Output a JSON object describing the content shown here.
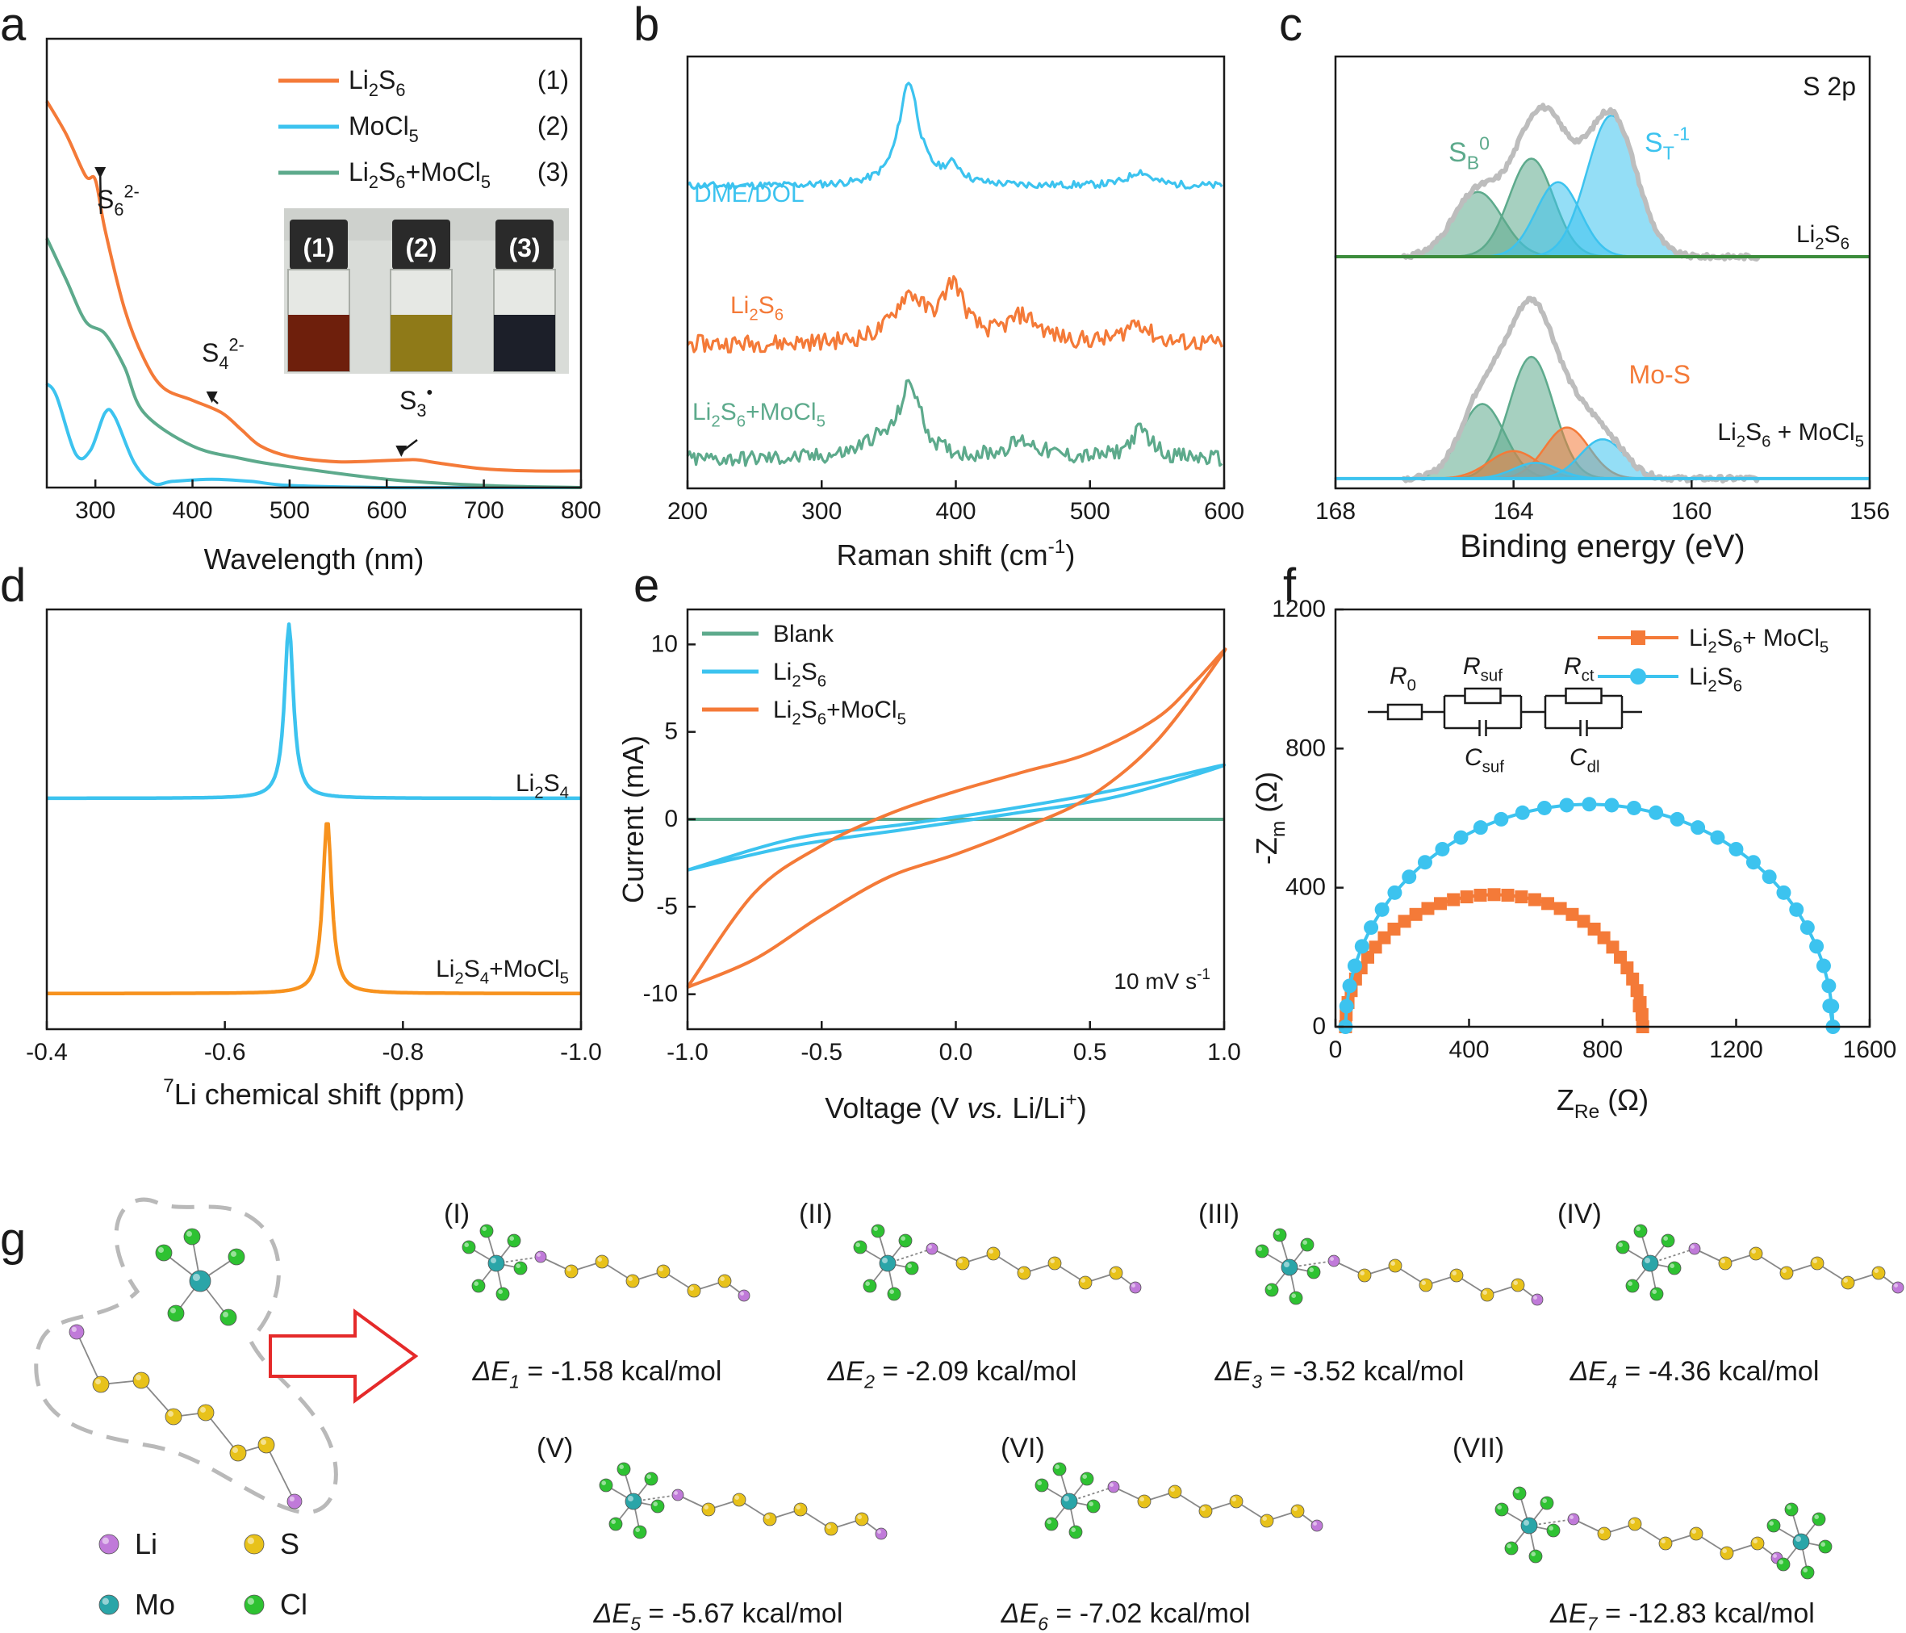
{
  "panels": {
    "a": {
      "letter": "a",
      "chart_data": {
        "type": "line",
        "xlabel": "Wavelength (nm)",
        "ylabel": "",
        "xlim": [
          250,
          800
        ],
        "ylim": [
          0,
          1
        ],
        "xticks": [
          300,
          400,
          500,
          600,
          700,
          800
        ],
        "series": [
          {
            "name": "Li2S6",
            "num": "(1)",
            "color": "#f47a38",
            "x": [
              250,
              270,
              290,
              300,
              310,
              330,
              350,
              370,
              400,
              430,
              450,
              470,
              500,
              550,
              600,
              630,
              650,
              700,
              750,
              800
            ],
            "y": [
              0.93,
              0.85,
              0.75,
              0.74,
              0.62,
              0.43,
              0.31,
              0.24,
              0.21,
              0.18,
              0.14,
              0.1,
              0.075,
              0.062,
              0.065,
              0.067,
              0.06,
              0.045,
              0.04,
              0.04
            ]
          },
          {
            "name": "MoCl5",
            "num": "(2)",
            "color": "#3cc3ef",
            "x": [
              250,
              260,
              280,
              295,
              310,
              320,
              340,
              360,
              380,
              420,
              460,
              500,
              600,
              700,
              800
            ],
            "y": [
              0.25,
              0.22,
              0.08,
              0.09,
              0.18,
              0.17,
              0.06,
              0.01,
              0.015,
              0.02,
              0.015,
              0.005,
              0.0,
              0.0,
              0.0
            ]
          },
          {
            "name": "Li2S6+MoCl5",
            "num": "(3)",
            "color": "#5daa8c",
            "x": [
              250,
              270,
              290,
              310,
              330,
              350,
              400,
              450,
              500,
              600,
              700,
              800
            ],
            "y": [
              0.6,
              0.5,
              0.4,
              0.37,
              0.29,
              0.18,
              0.1,
              0.07,
              0.05,
              0.02,
              0.005,
              0.0
            ]
          }
        ],
        "annotations": [
          {
            "base": "S",
            "sub": "6",
            "sup": "2-",
            "at_x": 305,
            "at_y": 0.74
          },
          {
            "base": "S",
            "sub": "4",
            "sup": "2-",
            "at_x": 420,
            "at_y": 0.2
          },
          {
            "base": "S",
            "sub": "3",
            "sup": "•",
            "at_x": 615,
            "at_y": 0.07
          }
        ],
        "inset": {
          "vials": [
            "(1)",
            "(2)",
            "(3)"
          ],
          "colors": [
            "#6e1f0c",
            "#8f7a18",
            "#1c1f29"
          ]
        }
      }
    },
    "b": {
      "letter": "b",
      "chart_data": {
        "type": "line",
        "xlabel": "Raman shift (cm-1)",
        "ylabel": "",
        "xlim": [
          200,
          600
        ],
        "ylim": [
          0,
          3
        ],
        "xticks": [
          200,
          300,
          400,
          500,
          600
        ],
        "series": [
          {
            "name": "DME/DOL",
            "color": "#3cc3ef",
            "offset": 2.1,
            "peaks": [
              {
                "c": 365,
                "h": 0.72,
                "w": 9
              },
              {
                "c": 398,
                "h": 0.12,
                "w": 8
              },
              {
                "c": 537,
                "h": 0.1,
                "w": 10
              }
            ],
            "noise": 0.025
          },
          {
            "name": "Li2S6",
            "color": "#f47a38",
            "offset": 1.0,
            "peaks": [
              {
                "c": 365,
                "h": 0.32,
                "w": 14
              },
              {
                "c": 398,
                "h": 0.38,
                "w": 10
              },
              {
                "c": 450,
                "h": 0.18,
                "w": 15
              },
              {
                "c": 535,
                "h": 0.15,
                "w": 10
              }
            ],
            "noise": 0.06
          },
          {
            "name": "Li2S6+MoCl5",
            "color": "#5daa8c",
            "offset": 0.2,
            "peaks": [
              {
                "c": 366,
                "h": 0.5,
                "w": 10
              },
              {
                "c": 340,
                "h": 0.1,
                "w": 15
              },
              {
                "c": 450,
                "h": 0.12,
                "w": 15
              },
              {
                "c": 538,
                "h": 0.2,
                "w": 10
              }
            ],
            "noise": 0.055
          }
        ]
      }
    },
    "c": {
      "letter": "c",
      "chart_data": {
        "type": "area",
        "title": "S 2p",
        "xlabel": "Binding energy (eV)",
        "ylabel": "",
        "xlim": [
          168,
          156
        ],
        "ylim": [
          0,
          2.2
        ],
        "xticks": [
          168,
          164,
          160,
          156
        ],
        "series": [
          {
            "name": "Li2S6",
            "offset": 1.18,
            "components": [
              {
                "c": 164.8,
                "h": 0.33,
                "w": 0.55,
                "color": "#5daa8c"
              },
              {
                "c": 163.6,
                "h": 0.5,
                "w": 0.5,
                "color": "#5daa8c"
              },
              {
                "c": 163.0,
                "h": 0.38,
                "w": 0.5,
                "color": "#3cc3ef"
              },
              {
                "c": 161.8,
                "h": 0.72,
                "w": 0.55,
                "color": "#3cc3ef"
              }
            ]
          },
          {
            "name": "Li2S6 + MoCl5",
            "offset": 0.05,
            "components": [
              {
                "c": 164.7,
                "h": 0.38,
                "w": 0.5,
                "color": "#5daa8c"
              },
              {
                "c": 163.6,
                "h": 0.62,
                "w": 0.5,
                "color": "#5daa8c"
              },
              {
                "c": 164.0,
                "h": 0.14,
                "w": 0.55,
                "color": "#f47a38"
              },
              {
                "c": 162.8,
                "h": 0.26,
                "w": 0.5,
                "color": "#f47a38"
              },
              {
                "c": 163.5,
                "h": 0.08,
                "w": 0.5,
                "color": "#3cc3ef"
              },
              {
                "c": 162.0,
                "h": 0.2,
                "w": 0.5,
                "color": "#3cc3ef"
              }
            ]
          }
        ],
        "labels": {
          "sb": "S",
          "sb_sub": "B",
          "sb_sup": "0",
          "st": "S",
          "st_sub": "T",
          "st_sup": "-1",
          "mos": "Mo-S"
        }
      }
    },
    "d": {
      "letter": "d",
      "chart_data": {
        "type": "line",
        "xlabel": "7Li chemical shift (ppm)",
        "ylabel": "",
        "xlim": [
          -0.4,
          -1.0
        ],
        "ylim": [
          0,
          2
        ],
        "xticks": [
          -0.4,
          -0.6,
          -0.8,
          -1.0
        ],
        "series": [
          {
            "name": "Li2S4",
            "color": "#3cc3ef",
            "offset": 1.1,
            "center": -0.672,
            "height": 0.83,
            "width": 0.006
          },
          {
            "name": "Li2S4+MoCl5",
            "color": "#f7921e",
            "offset": 0.17,
            "center": -0.715,
            "height": 0.83,
            "width": 0.006
          }
        ]
      }
    },
    "e": {
      "letter": "e",
      "chart_data": {
        "type": "line",
        "xlabel": "Voltage (V vs. Li/Li+)",
        "ylabel": "Current (mA)",
        "xlim": [
          -1.0,
          1.0
        ],
        "ylim": [
          -12,
          12
        ],
        "xticks": [
          -1.0,
          -0.5,
          0.0,
          0.5,
          1.0
        ],
        "yticks": [
          -10,
          -5,
          0,
          5,
          10
        ],
        "note": "10 mV s-1",
        "series": [
          {
            "name": "Blank",
            "color": "#5daa8c",
            "x": [
              -1.0,
              1.0
            ],
            "y": [
              0,
              0
            ]
          },
          {
            "name": "Li2S6",
            "color": "#3cc3ef",
            "x": [
              -1.0,
              -0.6,
              -0.2,
              0.2,
              0.6,
              1.0,
              0.6,
              0.2,
              -0.2,
              -0.6,
              -1.0
            ],
            "y": [
              -2.9,
              -1.5,
              -0.6,
              0.3,
              1.3,
              3.1,
              1.7,
              0.6,
              -0.3,
              -1.1,
              -2.9
            ]
          },
          {
            "name": "Li2S6+MoCl5",
            "color": "#f47a38",
            "x": [
              -1.0,
              -0.75,
              -0.5,
              -0.25,
              0.0,
              0.25,
              0.5,
              0.75,
              1.0,
              0.9,
              0.75,
              0.5,
              0.25,
              0.0,
              -0.25,
              -0.5,
              -0.75,
              -1.0
            ],
            "y": [
              -9.6,
              -8.0,
              -5.5,
              -3.3,
              -2.0,
              -0.5,
              1.3,
              4.5,
              9.6,
              8.0,
              5.8,
              3.8,
              2.7,
              1.6,
              0.3,
              -1.5,
              -4.2,
              -9.6
            ]
          }
        ]
      }
    },
    "f": {
      "letter": "f",
      "chart_data": {
        "type": "scatter",
        "xlabel": "ZRe (Ω)",
        "ylabel": "-Zm (Ω)",
        "xlim": [
          0,
          1600
        ],
        "ylim": [
          0,
          1200
        ],
        "xticks": [
          0,
          400,
          800,
          1200,
          1600
        ],
        "yticks": [
          0,
          400,
          800,
          1200
        ],
        "series": [
          {
            "name": "Li2S6+ MoCl5",
            "color": "#f47a38",
            "marker": "square",
            "x0": 30,
            "x1": 920,
            "r": 380
          },
          {
            "name": "Li2S6",
            "color": "#3cc3ef",
            "marker": "circle",
            "x0": 30,
            "x1": 1490,
            "r": 640
          }
        ],
        "circuit": {
          "r0": "R",
          "r0_sub": "0",
          "rsuf": "R",
          "rsuf_sub": "suf",
          "rct": "R",
          "rct_sub": "ct",
          "csuf": "C",
          "csuf_sub": "suf",
          "cdl": "C",
          "cdl_sub": "dl"
        }
      }
    }
  },
  "g": {
    "letter": "g",
    "legend": [
      {
        "label": "Li",
        "color": "#c07ad9"
      },
      {
        "label": "S",
        "color": "#e8c21a"
      },
      {
        "label": "Mo",
        "color": "#2aa5a8"
      },
      {
        "label": "Cl",
        "color": "#2ec232"
      }
    ],
    "configs": [
      {
        "id": "(I)",
        "de_sym": "ΔE",
        "de_sub": "1",
        "value": "= -1.58 kcal/mol"
      },
      {
        "id": "(II)",
        "de_sym": "ΔE",
        "de_sub": "2",
        "value": "= -2.09 kcal/mol"
      },
      {
        "id": "(III)",
        "de_sym": "ΔE",
        "de_sub": "3",
        "value": "= -3.52 kcal/mol"
      },
      {
        "id": "(IV)",
        "de_sym": "ΔE",
        "de_sub": "4",
        "value": "= -4.36 kcal/mol"
      },
      {
        "id": "(V)",
        "de_sym": "ΔE",
        "de_sub": "5",
        "value": "= -5.67 kcal/mol"
      },
      {
        "id": "(VI)",
        "de_sym": "ΔE",
        "de_sub": "6",
        "value": "= -7.02 kcal/mol"
      },
      {
        "id": "(VII)",
        "de_sym": "ΔE",
        "de_sub": "7",
        "value": "= -12.83 kcal/mol"
      }
    ]
  }
}
